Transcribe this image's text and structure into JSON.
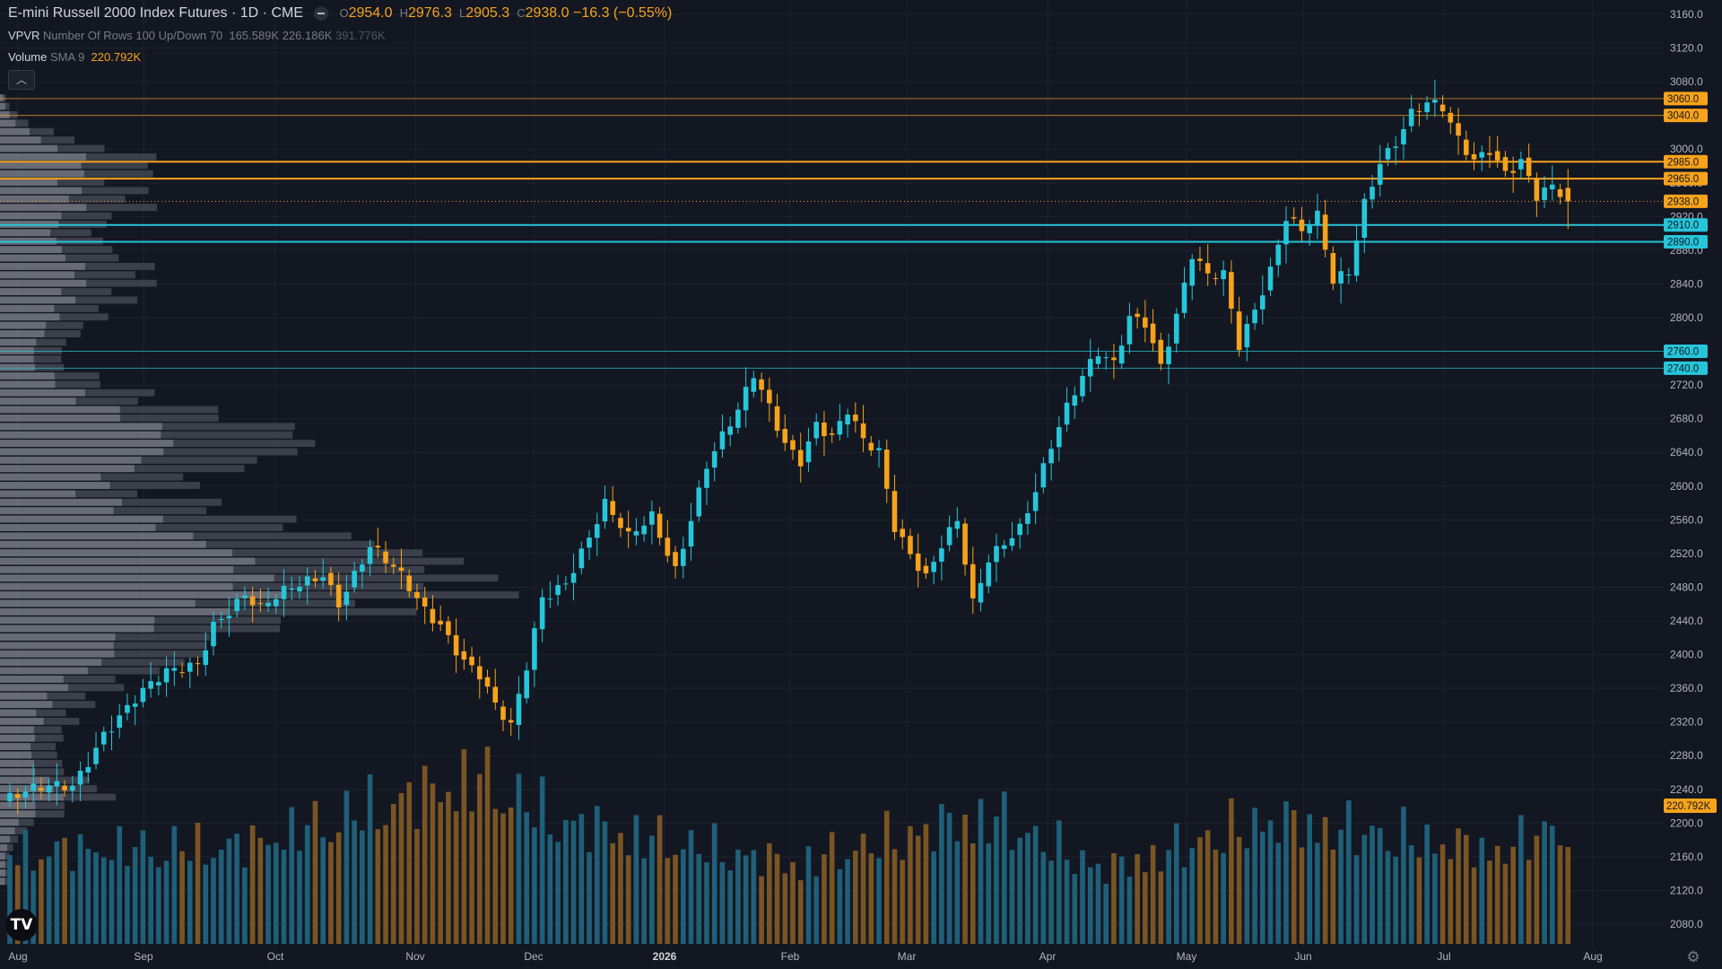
{
  "legend": {
    "symbol": "E-mini Russell 2000 Index Futures · 1D · CME",
    "ohlc": [
      {
        "k": "O",
        "v": "2954.0"
      },
      {
        "k": "H",
        "v": "2976.3"
      },
      {
        "k": "L",
        "v": "2905.3"
      },
      {
        "k": "C",
        "v": "2938.0"
      }
    ],
    "change": "−16.3 (−0.55%)",
    "vpvr_name": "VPVR",
    "vpvr_params": "Number Of Rows 100 Up/Down 70",
    "vpvr_values": [
      "165.589K",
      "226.186K",
      "391.776K"
    ],
    "volume_name": "Volume",
    "volume_params": "SMA 9",
    "volume_value": "220.792K",
    "collapse_icon": "chevron-up-icon",
    "logo_text": "TV"
  },
  "colors": {
    "background": "#131722",
    "up": "#26c6da",
    "down": "#f7a21b",
    "up_volume": "#1f5f78",
    "down_volume": "#7a5524",
    "vp_light": "#787b86",
    "vp_dark": "#434651",
    "resistance": "#f7a21b",
    "support": "#26c6da"
  },
  "chart_data": {
    "type": "candlestick",
    "title": "E-mini Russell 2000 Index Futures · 1D · CME",
    "price_axis": {
      "range": [
        2040,
        3180
      ],
      "ticks": [
        2080,
        2120,
        2160,
        2200,
        2240,
        2280,
        2320,
        2360,
        2400,
        2440,
        2480,
        2520,
        2560,
        2600,
        2640,
        2680,
        2720,
        2760,
        2800,
        2840,
        2880,
        2920,
        2960,
        3000,
        3040,
        3080,
        3120,
        3160
      ],
      "tick_labels": [
        "2080.0",
        "2120.0",
        "2160.0",
        "2200.0",
        "2240.0",
        "2280.0",
        "2320.0",
        "2360.0",
        "2400.0",
        "2440.0",
        "2480.0",
        "2520.0",
        "2560.0",
        "2600.0",
        "2640.0",
        "2680.0",
        "2720.0",
        "2760.0",
        "2800.0",
        "2840.0",
        "2880.0",
        "2920.0",
        "2960.0",
        "3000.0",
        "3040.0",
        "3080.0",
        "3120.0",
        "3160.0"
      ]
    },
    "time_axis": {
      "labels": [
        "Aug",
        "Sep",
        "Oct",
        "Nov",
        "Dec",
        "2026",
        "Feb",
        "Mar",
        "Apr",
        "May",
        "Jun",
        "Jul",
        "Aug"
      ],
      "bold": [
        "2026"
      ]
    },
    "horizontal_levels": [
      {
        "price": 3060.0,
        "label": "3060.0",
        "kind": "resistance",
        "weight": "thin"
      },
      {
        "price": 3040.0,
        "label": "3040.0",
        "kind": "resistance",
        "weight": "thin"
      },
      {
        "price": 2985.0,
        "label": "2985.0",
        "kind": "resistance",
        "weight": "bold"
      },
      {
        "price": 2965.0,
        "label": "2965.0",
        "kind": "resistance",
        "weight": "bold"
      },
      {
        "price": 2938.0,
        "label": "2938.0",
        "kind": "last-price",
        "weight": "dotted"
      },
      {
        "price": 2910.0,
        "label": "2910.0",
        "kind": "support",
        "weight": "bold"
      },
      {
        "price": 2890.0,
        "label": "2890.0",
        "kind": "support",
        "weight": "bold"
      },
      {
        "price": 2760.0,
        "label": "2760.0",
        "kind": "support",
        "weight": "thin"
      },
      {
        "price": 2740.0,
        "label": "2740.0",
        "kind": "support",
        "weight": "thin"
      }
    ],
    "volume_sma_label": "220.792K",
    "volume_axis_max": 360,
    "path_anchors": [
      [
        0,
        2230
      ],
      [
        8,
        2245
      ],
      [
        12,
        2310
      ],
      [
        16,
        2345
      ],
      [
        20,
        2375
      ],
      [
        24,
        2392
      ],
      [
        26,
        2440
      ],
      [
        30,
        2470
      ],
      [
        32,
        2450
      ],
      [
        36,
        2478
      ],
      [
        40,
        2500
      ],
      [
        42,
        2465
      ],
      [
        46,
        2525
      ],
      [
        50,
        2490
      ],
      [
        53,
        2455
      ],
      [
        55,
        2440
      ],
      [
        58,
        2395
      ],
      [
        60,
        2375
      ],
      [
        62,
        2335
      ],
      [
        64,
        2310
      ],
      [
        66,
        2385
      ],
      [
        68,
        2470
      ],
      [
        71,
        2490
      ],
      [
        74,
        2540
      ],
      [
        76,
        2575
      ],
      [
        79,
        2535
      ],
      [
        82,
        2565
      ],
      [
        85,
        2505
      ],
      [
        87,
        2565
      ],
      [
        89,
        2625
      ],
      [
        91,
        2655
      ],
      [
        93,
        2685
      ],
      [
        95,
        2730
      ],
      [
        97,
        2695
      ],
      [
        99,
        2655
      ],
      [
        101,
        2635
      ],
      [
        103,
        2675
      ],
      [
        105,
        2655
      ],
      [
        107,
        2685
      ],
      [
        109,
        2650
      ],
      [
        111,
        2640
      ],
      [
        113,
        2555
      ],
      [
        115,
        2525
      ],
      [
        117,
        2495
      ],
      [
        119,
        2530
      ],
      [
        121,
        2555
      ],
      [
        123,
        2455
      ],
      [
        125,
        2510
      ],
      [
        127,
        2535
      ],
      [
        129,
        2555
      ],
      [
        131,
        2600
      ],
      [
        133,
        2650
      ],
      [
        135,
        2690
      ],
      [
        137,
        2725
      ],
      [
        139,
        2755
      ],
      [
        141,
        2745
      ],
      [
        143,
        2805
      ],
      [
        145,
        2800
      ],
      [
        147,
        2745
      ],
      [
        149,
        2800
      ],
      [
        151,
        2870
      ],
      [
        153,
        2845
      ],
      [
        155,
        2850
      ],
      [
        157,
        2770
      ],
      [
        159,
        2815
      ],
      [
        161,
        2860
      ],
      [
        163,
        2920
      ],
      [
        165,
        2900
      ],
      [
        167,
        2915
      ],
      [
        169,
        2840
      ],
      [
        171,
        2855
      ],
      [
        173,
        2940
      ],
      [
        175,
        2990
      ],
      [
        177,
        3010
      ],
      [
        179,
        3040
      ],
      [
        181,
        3050
      ],
      [
        183,
        3045
      ],
      [
        185,
        3010
      ],
      [
        187,
        2990
      ],
      [
        189,
        3005
      ],
      [
        191,
        2975
      ],
      [
        193,
        2985
      ],
      [
        195,
        2940
      ],
      [
        197,
        2950
      ],
      [
        199,
        2938
      ]
    ],
    "volume_levels": [
      [
        0,
        150
      ],
      [
        30,
        160
      ],
      [
        60,
        270
      ],
      [
        70,
        200
      ],
      [
        100,
        130
      ],
      [
        125,
        210
      ],
      [
        140,
        120
      ],
      [
        160,
        200
      ],
      [
        175,
        180
      ],
      [
        190,
        150
      ],
      [
        199,
        200
      ]
    ],
    "volume_profile": {
      "rows": 100,
      "note": "horizontal histogram anchored at left edge"
    }
  }
}
